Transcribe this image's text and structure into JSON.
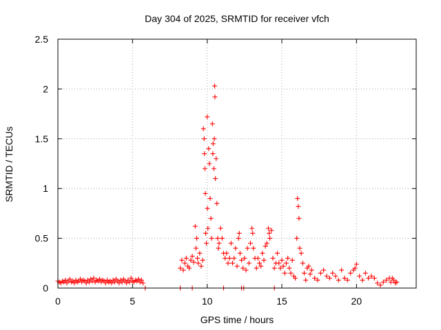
{
  "chart_data": {
    "type": "scatter",
    "title": "Day 304 of 2025, SRMTID for receiver vfch",
    "xlabel": "GPS time / hours",
    "ylabel": "SRMTID / TECUs",
    "xlim": [
      0,
      24
    ],
    "ylim": [
      0,
      2.5
    ],
    "xticks": [
      0,
      5,
      10,
      15,
      20
    ],
    "xtick_labels": [
      "0",
      "5",
      "10",
      "15",
      "20"
    ],
    "yticks": [
      0,
      0.5,
      1,
      1.5,
      2,
      2.5
    ],
    "ytick_labels": [
      "0",
      "0.5",
      "1",
      "1.5",
      "2",
      "2.5"
    ],
    "grid": true,
    "marker": "+",
    "marker_color": "#ff0000",
    "series": [
      {
        "name": "SRMTID",
        "points": [
          [
            0.0,
            0.07
          ],
          [
            0.1,
            0.06
          ],
          [
            0.2,
            0.05
          ],
          [
            0.3,
            0.07
          ],
          [
            0.4,
            0.06
          ],
          [
            0.5,
            0.08
          ],
          [
            0.6,
            0.05
          ],
          [
            0.7,
            0.07
          ],
          [
            0.8,
            0.09
          ],
          [
            0.9,
            0.06
          ],
          [
            1.0,
            0.07
          ],
          [
            1.1,
            0.05
          ],
          [
            1.2,
            0.08
          ],
          [
            1.3,
            0.06
          ],
          [
            1.4,
            0.07
          ],
          [
            1.5,
            0.09
          ],
          [
            1.6,
            0.06
          ],
          [
            1.7,
            0.08
          ],
          [
            1.8,
            0.07
          ],
          [
            1.9,
            0.05
          ],
          [
            2.0,
            0.08
          ],
          [
            2.1,
            0.06
          ],
          [
            2.2,
            0.09
          ],
          [
            2.3,
            0.07
          ],
          [
            2.4,
            0.1
          ],
          [
            2.5,
            0.06
          ],
          [
            2.6,
            0.08
          ],
          [
            2.7,
            0.07
          ],
          [
            2.8,
            0.09
          ],
          [
            2.9,
            0.06
          ],
          [
            3.0,
            0.08
          ],
          [
            3.1,
            0.07
          ],
          [
            3.2,
            0.05
          ],
          [
            3.3,
            0.08
          ],
          [
            3.4,
            0.06
          ],
          [
            3.5,
            0.07
          ],
          [
            3.6,
            0.05
          ],
          [
            3.7,
            0.08
          ],
          [
            3.8,
            0.06
          ],
          [
            3.9,
            0.09
          ],
          [
            4.0,
            0.07
          ],
          [
            4.1,
            0.05
          ],
          [
            4.2,
            0.08
          ],
          [
            4.3,
            0.06
          ],
          [
            4.4,
            0.09
          ],
          [
            4.5,
            0.07
          ],
          [
            4.6,
            0.05
          ],
          [
            4.7,
            0.08
          ],
          [
            4.8,
            0.06
          ],
          [
            4.9,
            0.1
          ],
          [
            5.0,
            0.07
          ],
          [
            5.1,
            0.06
          ],
          [
            5.2,
            0.08
          ],
          [
            5.3,
            0.07
          ],
          [
            5.4,
            0.09
          ],
          [
            5.5,
            0.06
          ],
          [
            5.6,
            0.08
          ],
          [
            5.7,
            0.05
          ],
          [
            5.85,
            0.0
          ],
          [
            8.2,
            0.0
          ],
          [
            9.0,
            0.0
          ],
          [
            11.1,
            0.0
          ],
          [
            12.3,
            0.0
          ],
          [
            12.45,
            0.0
          ],
          [
            14.5,
            0.0
          ],
          [
            8.2,
            0.2
          ],
          [
            8.3,
            0.28
          ],
          [
            8.4,
            0.18
          ],
          [
            8.5,
            0.25
          ],
          [
            8.6,
            0.3
          ],
          [
            8.7,
            0.22
          ],
          [
            8.8,
            0.2
          ],
          [
            8.9,
            0.28
          ],
          [
            9.0,
            0.32
          ],
          [
            9.1,
            0.26
          ],
          [
            9.2,
            0.62
          ],
          [
            9.25,
            0.4
          ],
          [
            9.3,
            0.5
          ],
          [
            9.35,
            0.3
          ],
          [
            9.4,
            0.25
          ],
          [
            9.5,
            0.35
          ],
          [
            9.6,
            0.22
          ],
          [
            9.7,
            0.28
          ],
          [
            9.75,
            1.6
          ],
          [
            9.8,
            1.5
          ],
          [
            9.82,
            1.35
          ],
          [
            9.85,
            1.2
          ],
          [
            9.88,
            0.95
          ],
          [
            9.9,
            0.55
          ],
          [
            9.95,
            0.45
          ],
          [
            10.0,
            1.72
          ],
          [
            10.02,
            0.8
          ],
          [
            10.05,
            0.6
          ],
          [
            10.1,
            1.4
          ],
          [
            10.15,
            1.25
          ],
          [
            10.2,
            0.9
          ],
          [
            10.25,
            0.7
          ],
          [
            10.3,
            0.5
          ],
          [
            10.35,
            1.65
          ],
          [
            10.38,
            1.35
          ],
          [
            10.4,
            1.45
          ],
          [
            10.45,
            1.2
          ],
          [
            10.48,
            1.5
          ],
          [
            10.5,
            2.03
          ],
          [
            10.52,
            1.92
          ],
          [
            10.55,
            1.1
          ],
          [
            10.6,
            1.3
          ],
          [
            10.65,
            0.85
          ],
          [
            10.7,
            0.5
          ],
          [
            10.75,
            0.4
          ],
          [
            10.8,
            0.45
          ],
          [
            10.9,
            0.6
          ],
          [
            11.0,
            0.5
          ],
          [
            11.1,
            0.35
          ],
          [
            11.2,
            0.3
          ],
          [
            11.3,
            0.35
          ],
          [
            11.4,
            0.25
          ],
          [
            11.5,
            0.3
          ],
          [
            11.6,
            0.45
          ],
          [
            11.7,
            0.25
          ],
          [
            11.8,
            0.3
          ],
          [
            11.9,
            0.4
          ],
          [
            12.0,
            0.22
          ],
          [
            12.1,
            0.5
          ],
          [
            12.15,
            0.55
          ],
          [
            12.2,
            0.35
          ],
          [
            12.3,
            0.28
          ],
          [
            12.4,
            0.2
          ],
          [
            12.5,
            0.3
          ],
          [
            12.6,
            0.18
          ],
          [
            12.7,
            0.4
          ],
          [
            12.8,
            0.25
          ],
          [
            12.9,
            0.45
          ],
          [
            13.0,
            0.6
          ],
          [
            13.05,
            0.55
          ],
          [
            13.1,
            0.4
          ],
          [
            13.2,
            0.3
          ],
          [
            13.3,
            0.2
          ],
          [
            13.4,
            0.3
          ],
          [
            13.5,
            0.25
          ],
          [
            13.6,
            0.22
          ],
          [
            13.7,
            0.35
          ],
          [
            13.8,
            0.28
          ],
          [
            13.9,
            0.42
          ],
          [
            14.0,
            0.45
          ],
          [
            14.1,
            0.6
          ],
          [
            14.15,
            0.55
          ],
          [
            14.2,
            0.5
          ],
          [
            14.3,
            0.58
          ],
          [
            14.4,
            0.3
          ],
          [
            14.5,
            0.2
          ],
          [
            14.6,
            0.25
          ],
          [
            14.7,
            0.35
          ],
          [
            14.8,
            0.25
          ],
          [
            14.9,
            0.2
          ],
          [
            15.0,
            0.28
          ],
          [
            15.1,
            0.22
          ],
          [
            15.2,
            0.15
          ],
          [
            15.3,
            0.25
          ],
          [
            15.4,
            0.3
          ],
          [
            15.5,
            0.2
          ],
          [
            15.6,
            0.15
          ],
          [
            15.7,
            0.28
          ],
          [
            15.8,
            0.12
          ],
          [
            15.9,
            0.1
          ],
          [
            16.0,
            0.5
          ],
          [
            16.05,
            0.9
          ],
          [
            16.1,
            0.82
          ],
          [
            16.15,
            0.7
          ],
          [
            16.2,
            0.4
          ],
          [
            16.3,
            0.35
          ],
          [
            16.4,
            0.25
          ],
          [
            16.5,
            0.15
          ],
          [
            16.6,
            0.08
          ],
          [
            16.7,
            0.2
          ],
          [
            16.8,
            0.22
          ],
          [
            16.9,
            0.14
          ],
          [
            17.0,
            0.18
          ],
          [
            17.2,
            0.1
          ],
          [
            17.4,
            0.08
          ],
          [
            17.6,
            0.15
          ],
          [
            17.8,
            0.18
          ],
          [
            18.0,
            0.12
          ],
          [
            18.2,
            0.1
          ],
          [
            18.4,
            0.15
          ],
          [
            18.6,
            0.12
          ],
          [
            18.8,
            0.08
          ],
          [
            19.0,
            0.18
          ],
          [
            19.2,
            0.1
          ],
          [
            19.4,
            0.08
          ],
          [
            19.6,
            0.15
          ],
          [
            19.8,
            0.18
          ],
          [
            19.9,
            0.2
          ],
          [
            20.0,
            0.24
          ],
          [
            20.2,
            0.12
          ],
          [
            20.4,
            0.08
          ],
          [
            20.6,
            0.15
          ],
          [
            20.8,
            0.1
          ],
          [
            21.0,
            0.12
          ],
          [
            21.2,
            0.1
          ],
          [
            21.4,
            0.05
          ],
          [
            21.6,
            0.03
          ],
          [
            21.8,
            0.06
          ],
          [
            22.0,
            0.08
          ],
          [
            22.2,
            0.1
          ],
          [
            22.3,
            0.06
          ],
          [
            22.4,
            0.1
          ],
          [
            22.5,
            0.08
          ],
          [
            22.6,
            0.05
          ],
          [
            22.7,
            0.06
          ]
        ]
      }
    ]
  }
}
